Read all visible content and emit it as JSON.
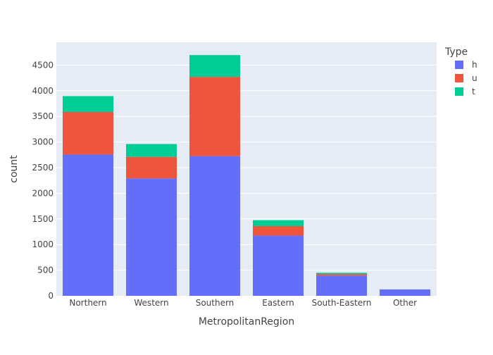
{
  "chart_data": {
    "type": "bar",
    "barmode": "stack",
    "title": "",
    "xlabel": "MetropolitanRegion",
    "ylabel": "count",
    "categories": [
      "Northern",
      "Western",
      "Southern",
      "Eastern",
      "South-Eastern",
      "Other"
    ],
    "series": [
      {
        "name": "h",
        "values": [
          2755,
          2290,
          2725,
          1175,
          395,
          125
        ],
        "color": "#636efa"
      },
      {
        "name": "u",
        "values": [
          830,
          420,
          1545,
          185,
          30,
          0
        ],
        "color": "#ef553b"
      },
      {
        "name": "t",
        "values": [
          310,
          250,
          425,
          115,
          25,
          0
        ],
        "color": "#00cc96"
      }
    ],
    "ylim": [
      0,
      4945
    ],
    "yticks": [
      0,
      500,
      1000,
      1500,
      2000,
      2500,
      3000,
      3500,
      4000,
      4500
    ],
    "grid": true,
    "legend": {
      "title": "Type",
      "position": "right"
    },
    "colors": {
      "plot_bg": "#e5ecf6",
      "paper_bg": "#ffffff",
      "grid": "#ffffff"
    }
  }
}
